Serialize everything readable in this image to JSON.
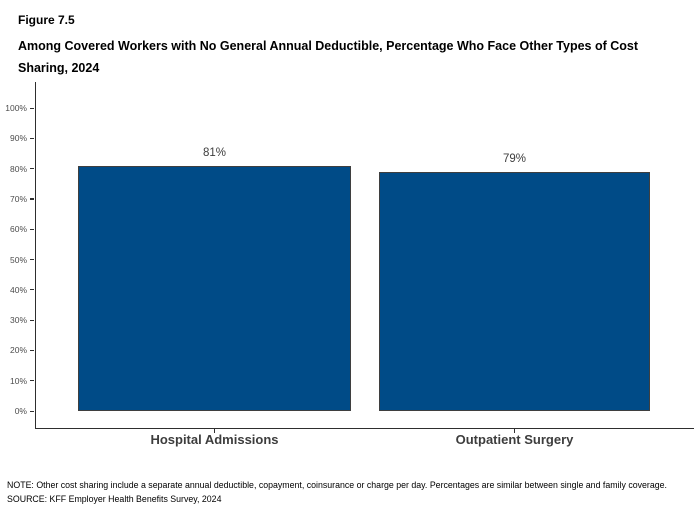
{
  "figure": {
    "number": "Figure 7.5",
    "title": "Among Covered Workers with No General Annual Deductible, Percentage Who Face Other Types of Cost Sharing, 2024"
  },
  "chart_data": {
    "type": "bar",
    "title": "Among Covered Workers with No General Annual Deductible, Percentage Who Face Other Types of Cost Sharing, 2024",
    "categories": [
      "Hospital Admissions",
      "Outpatient Surgery"
    ],
    "values": [
      81,
      79
    ],
    "value_labels": [
      "81%",
      "79%"
    ],
    "xlabel": "",
    "ylabel": "",
    "ylim": [
      0,
      100
    ],
    "yticks": [
      0,
      10,
      20,
      30,
      40,
      50,
      60,
      70,
      80,
      90,
      100
    ],
    "ytick_labels": [
      "0%",
      "10%",
      "20%",
      "30%",
      "40%",
      "50%",
      "60%",
      "70%",
      "80%",
      "90%",
      "100%"
    ],
    "grid": false,
    "legend_position": "none",
    "bar_color": "#004B87",
    "bar_border_color": "#3f3f3f",
    "axis_color": "#2e2e2e"
  },
  "footer": {
    "note": "NOTE: Other cost sharing include a separate annual deductible, copayment, coinsurance or charge per day. Percentages are similar between single and family coverage.",
    "source": "SOURCE: KFF Employer Health Benefits Survey, 2024"
  }
}
